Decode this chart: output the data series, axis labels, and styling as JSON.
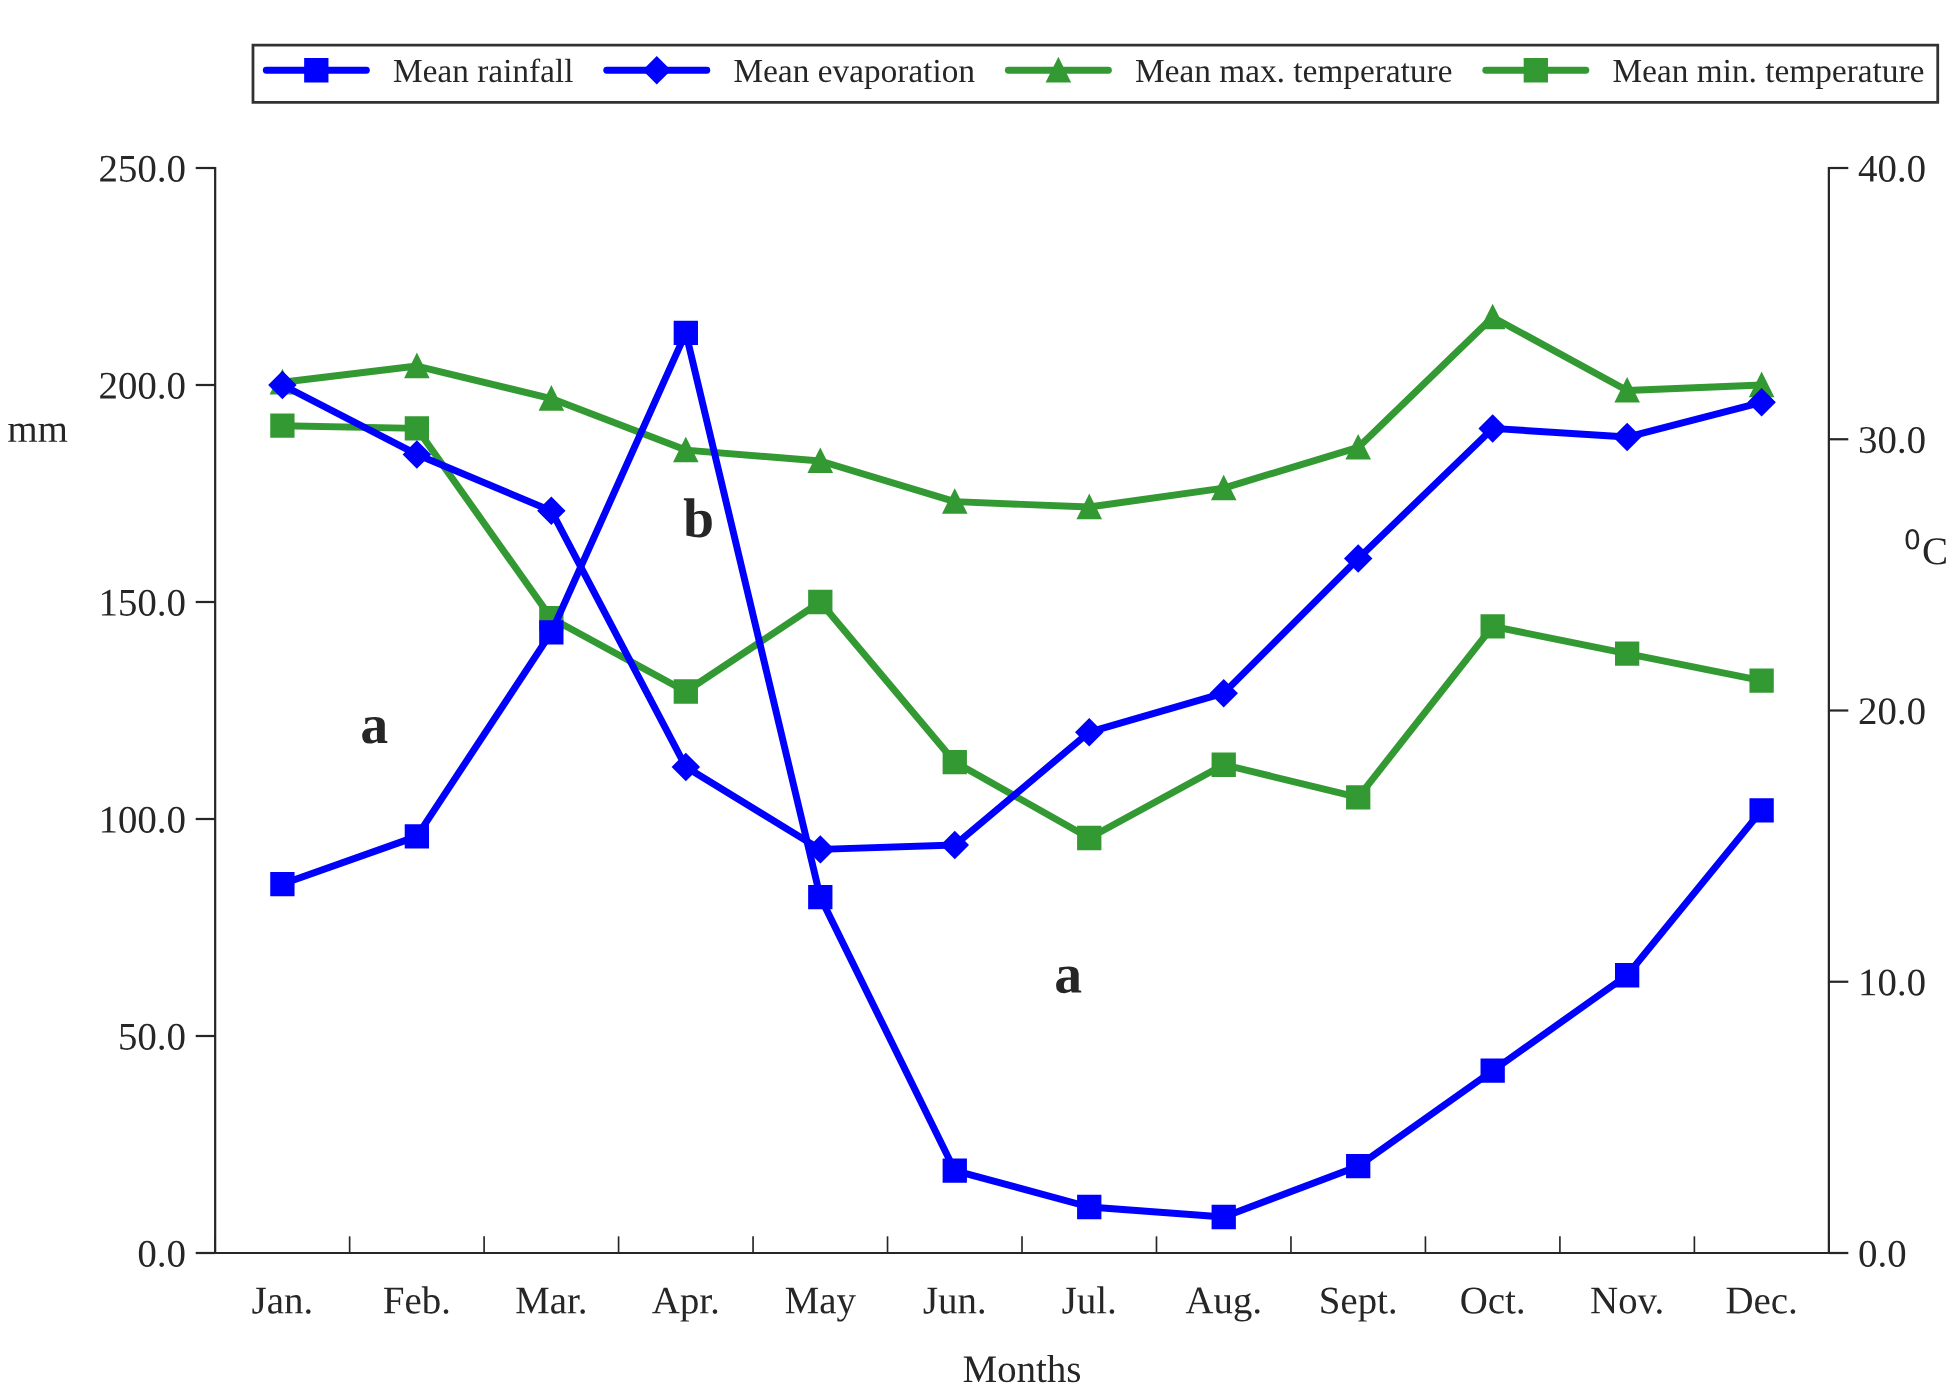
{
  "chart_data": {
    "type": "line",
    "xlabel": "Months",
    "ylabel": "mm",
    "y2label": "$^{0}$C",
    "categories": [
      "Jan.",
      "Feb.",
      "Mar.",
      "Apr.",
      "May",
      "Jun.",
      "Jul.",
      "Aug.",
      "Sept.",
      "Oct.",
      "Nov.",
      "Dec."
    ],
    "series": [
      {
        "name": "Mean rainfall",
        "color": "#0000ff",
        "marker": "square",
        "values": [
          85,
          96,
          143,
          212,
          82,
          19,
          10.6,
          8.3,
          20,
          42,
          64,
          102
        ]
      },
      {
        "name": "Mean evaporation",
        "color": "#0000ff",
        "marker": "diamond",
        "values": [
          200,
          184,
          171,
          112,
          93,
          94,
          120,
          129,
          160,
          190,
          188,
          196
        ]
      },
      {
        "name": "Mean max. temperature",
        "color": "#339933",
        "marker": "triangle",
        "axis": "y2",
        "values": [
          32.1,
          32.7,
          31.5,
          29.6,
          29.2,
          27.7,
          27.5,
          28.2,
          29.7,
          34.5,
          31.8,
          32.0
        ]
      },
      {
        "name": "Mean min. temperature",
        "color": "#339933",
        "marker": "square",
        "axis": "y2",
        "values": [
          30.5,
          30.4,
          23.4,
          20.7,
          24.0,
          18.1,
          15.3,
          18.0,
          16.8,
          23.1,
          22.1,
          21.1
        ]
      }
    ],
    "ylim": [
      0,
      250
    ],
    "yticks": [
      {
        "value": 0,
        "label": "0.0"
      },
      {
        "value": 50,
        "label": "50.0"
      },
      {
        "value": 100,
        "label": "100.0"
      },
      {
        "value": 150,
        "label": "150.0"
      },
      {
        "value": 200,
        "label": "200.0"
      },
      {
        "value": 250,
        "label": "250.0"
      }
    ],
    "y2lim": [
      0,
      40
    ],
    "y2ticks": [
      {
        "value": 0,
        "label": "0.0"
      },
      {
        "value": 10,
        "label": "10.0"
      },
      {
        "value": 20,
        "label": "20.0"
      },
      {
        "value": 30,
        "label": "30.0"
      },
      {
        "value": 40,
        "label": "40.0"
      }
    ],
    "annotations": [
      "a",
      "b",
      "a"
    ],
    "legend": "top",
    "grid": false
  }
}
